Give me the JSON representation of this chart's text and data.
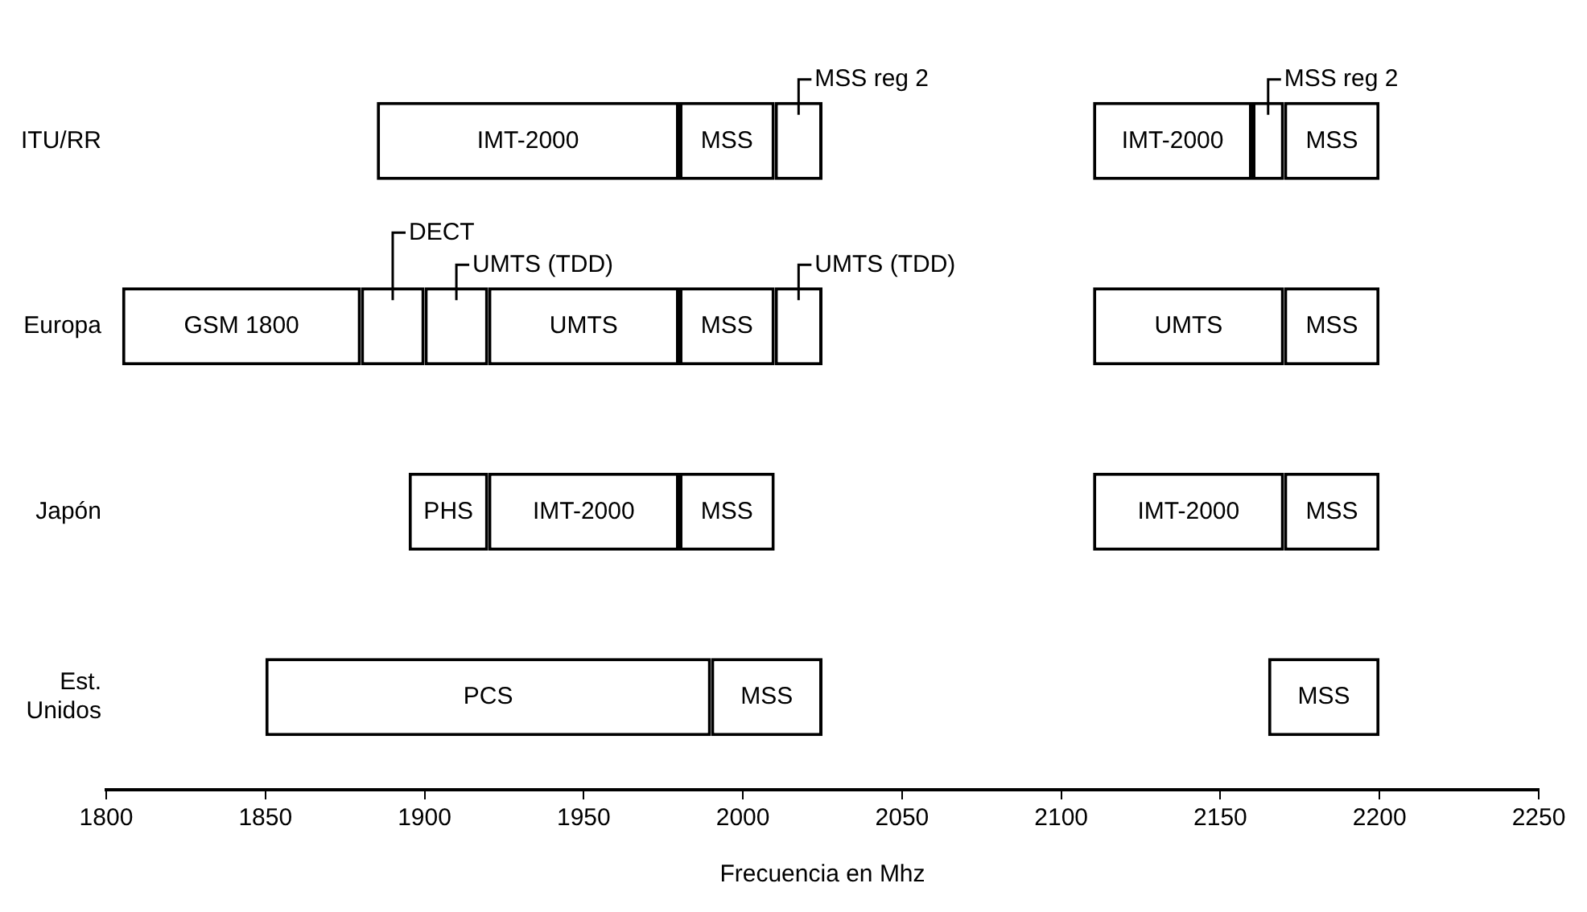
{
  "chart_data": {
    "type": "bar",
    "orientation": "horizontal",
    "xlabel": "Frecuencia en Mhz",
    "categories": [
      "ITU/RR",
      "Europa",
      "Japón",
      "Est. Unidos"
    ],
    "xlim": [
      1800,
      2250
    ],
    "xticks": [
      1800,
      1850,
      1900,
      1950,
      2000,
      2050,
      2100,
      2150,
      2200,
      2250
    ],
    "grid": false,
    "series": [
      {
        "color": "#ffffff",
        "base": [
          1885,
          1805,
          1895,
          1850
        ],
        "values": [
          95,
          75,
          25,
          140
        ],
        "value_labels": [
          "IMT-2000",
          "GSM 1800",
          "PHS",
          "PCS"
        ]
      },
      {
        "color": "#ffffff",
        "base": [
          1980,
          1880,
          1920,
          1990
        ],
        "values": [
          30,
          20,
          60,
          35
        ],
        "value_labels": [
          "MSS",
          "DECT",
          "IMT-2000",
          "MSS"
        ]
      },
      {
        "color": "#ffffff",
        "base": [
          2010,
          1900,
          1980,
          2165
        ],
        "values": [
          15,
          20,
          30,
          35
        ],
        "value_labels": [
          "MSS reg 2",
          "UMTS (TDD)",
          "MSS",
          "MSS"
        ]
      },
      {
        "color": "#ffffff",
        "base": [
          2110,
          1920,
          2110,
          null
        ],
        "values": [
          50,
          60,
          60,
          null
        ],
        "value_labels": [
          "IMT-2000",
          "UMTS",
          "IMT-2000",
          null
        ]
      },
      {
        "color": "#ffffff",
        "base": [
          2160,
          1980,
          2170,
          null
        ],
        "values": [
          10,
          30,
          30,
          null
        ],
        "value_labels": [
          "MSS reg 2",
          "MSS",
          "MSS",
          null
        ]
      },
      {
        "color": "#ffffff",
        "base": [
          2170,
          2010,
          null,
          null
        ],
        "values": [
          30,
          15,
          null,
          null
        ],
        "value_labels": [
          "MSS",
          "UMTS (TDD)",
          null,
          null
        ]
      },
      {
        "color": "#ffffff",
        "base": [
          null,
          2110,
          null,
          null
        ],
        "values": [
          null,
          60,
          null,
          null
        ],
        "value_labels": [
          null,
          "UMTS",
          null,
          null
        ]
      },
      {
        "color": "#ffffff",
        "base": [
          null,
          2170,
          null,
          null
        ],
        "values": [
          null,
          30,
          null,
          null
        ],
        "value_labels": [
          null,
          "MSS",
          null,
          null
        ]
      }
    ]
  }
}
